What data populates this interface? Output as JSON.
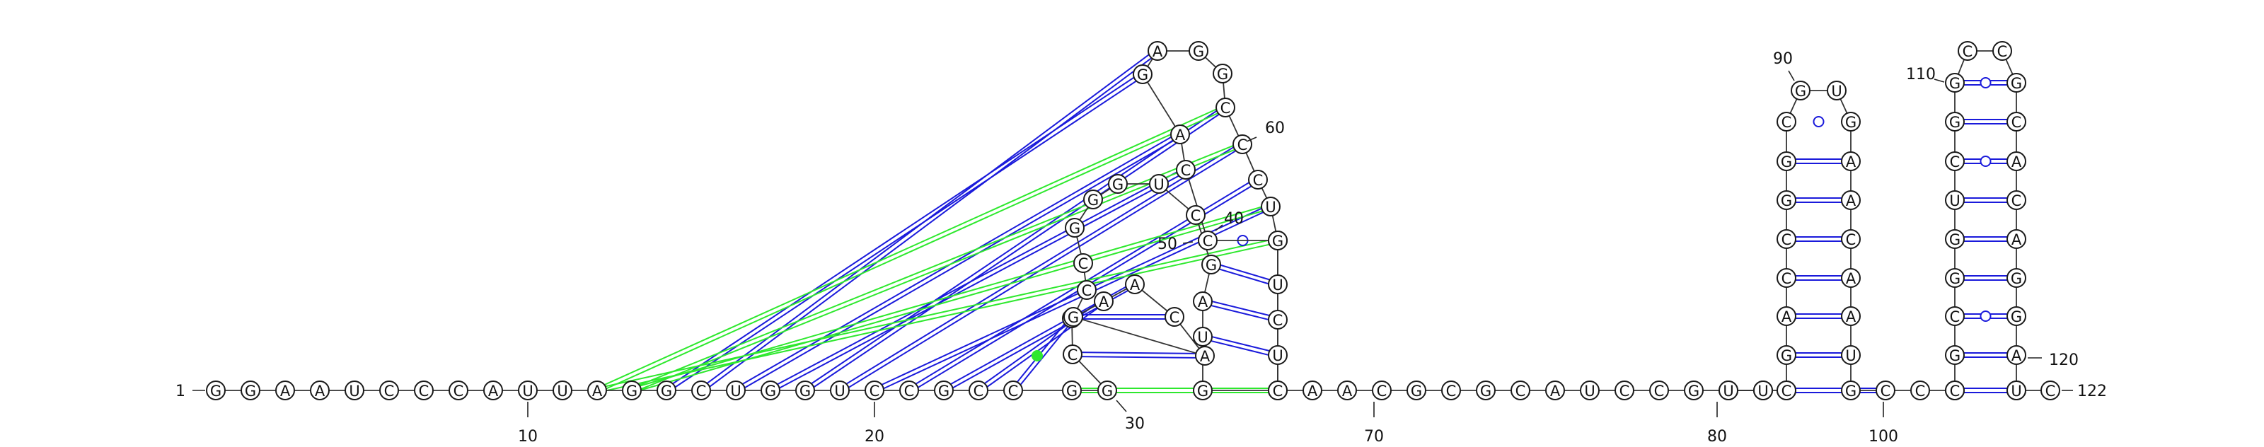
{
  "diagram": {
    "sequence": "GGAAUCCCAUUAGGCUGGUCCGCCGGCUAACAGCCGGGUCGAUGUUCUUCCAGAGGCCCUGCAACGCGCAUCCGGCUUCCGACCGGCGUGAACAAUGCCGCGCGGUCGGCCGCACAGGACUC",
    "length": 122,
    "position_labels": [
      "1",
      "10",
      "20",
      "30",
      "40",
      "50",
      "60",
      "70",
      "80",
      "90",
      "100",
      "110",
      "120",
      "122"
    ],
    "colors": {
      "canonical_pair": "#1a1adb",
      "noncanonical_pair": "#2ee82e",
      "gu_pair": "#1a1adb",
      "nucleotide_stroke": "#1a1a1a",
      "backbone": "#333333"
    },
    "stems": [
      {
        "i": 82,
        "j": 99,
        "len": 7
      },
      {
        "i": 103,
        "j": 121,
        "len": 9
      }
    ]
  }
}
